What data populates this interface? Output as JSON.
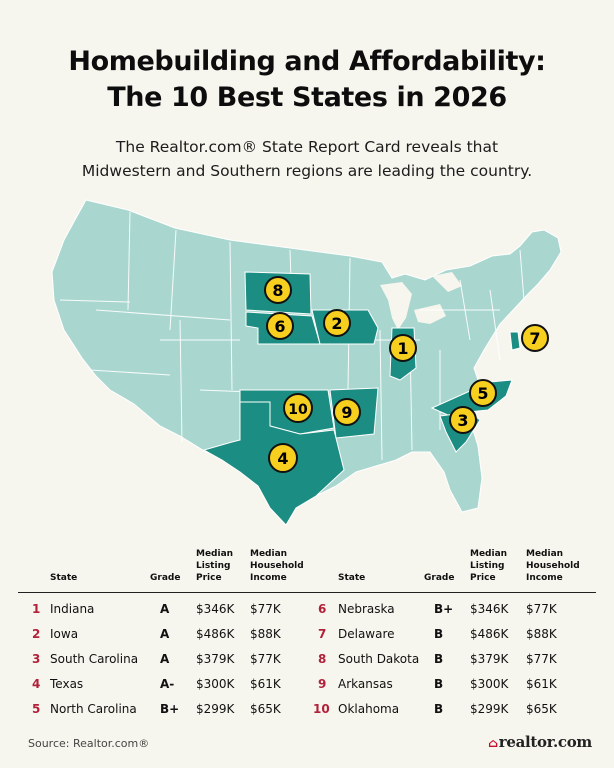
{
  "title_line1": "Homebuilding and Affordability:",
  "title_line2": "The 10 Best States in 2026",
  "subtitle_line1": "The Realtor.com® State Report Card reveals that",
  "subtitle_line2": "Midwestern and Southern regions are leading the country.",
  "colors": {
    "background": "#f7f6ee",
    "map_base": "#a9d7d0",
    "map_highlight": "#1c8d82",
    "badge_fill": "#f6cf1f",
    "rank_red": "#b1213a"
  },
  "map_badges": [
    "1",
    "2",
    "3",
    "4",
    "5",
    "6",
    "7",
    "8",
    "9",
    "10"
  ],
  "table": {
    "headers": {
      "state": "State",
      "grade": "Grade",
      "listing_1": "Median",
      "listing_2": "Listing",
      "listing_3": "Price",
      "income_1": "Median",
      "income_2": "Household",
      "income_3": "Income"
    },
    "left_rows": [
      {
        "rank": "1",
        "state": "Indiana",
        "grade": "A",
        "price": "$346K",
        "income": "$77K"
      },
      {
        "rank": "2",
        "state": "Iowa",
        "grade": "A",
        "price": "$486K",
        "income": "$88K"
      },
      {
        "rank": "3",
        "state": "South Carolina",
        "grade": "A",
        "price": "$379K",
        "income": "$77K"
      },
      {
        "rank": "4",
        "state": "Texas",
        "grade": "A-",
        "price": "$300K",
        "income": "$61K"
      },
      {
        "rank": "5",
        "state": "North Carolina",
        "grade": "B+",
        "price": "$299K",
        "income": "$65K"
      }
    ],
    "right_rows": [
      {
        "rank": "6",
        "state": "Nebraska",
        "grade": "B+",
        "price": "$346K",
        "income": "$77K"
      },
      {
        "rank": "7",
        "state": "Delaware",
        "grade": "B",
        "price": "$486K",
        "income": "$88K"
      },
      {
        "rank": "8",
        "state": "South Dakota",
        "grade": "B",
        "price": "$379K",
        "income": "$77K"
      },
      {
        "rank": "9",
        "state": "Arkansas",
        "grade": "B",
        "price": "$300K",
        "income": "$61K"
      },
      {
        "rank": "10",
        "state": "Oklahoma",
        "grade": "B",
        "price": "$299K",
        "income": "$65K"
      }
    ]
  },
  "source": "Source: Realtor.com®",
  "brand": "realtor.com"
}
